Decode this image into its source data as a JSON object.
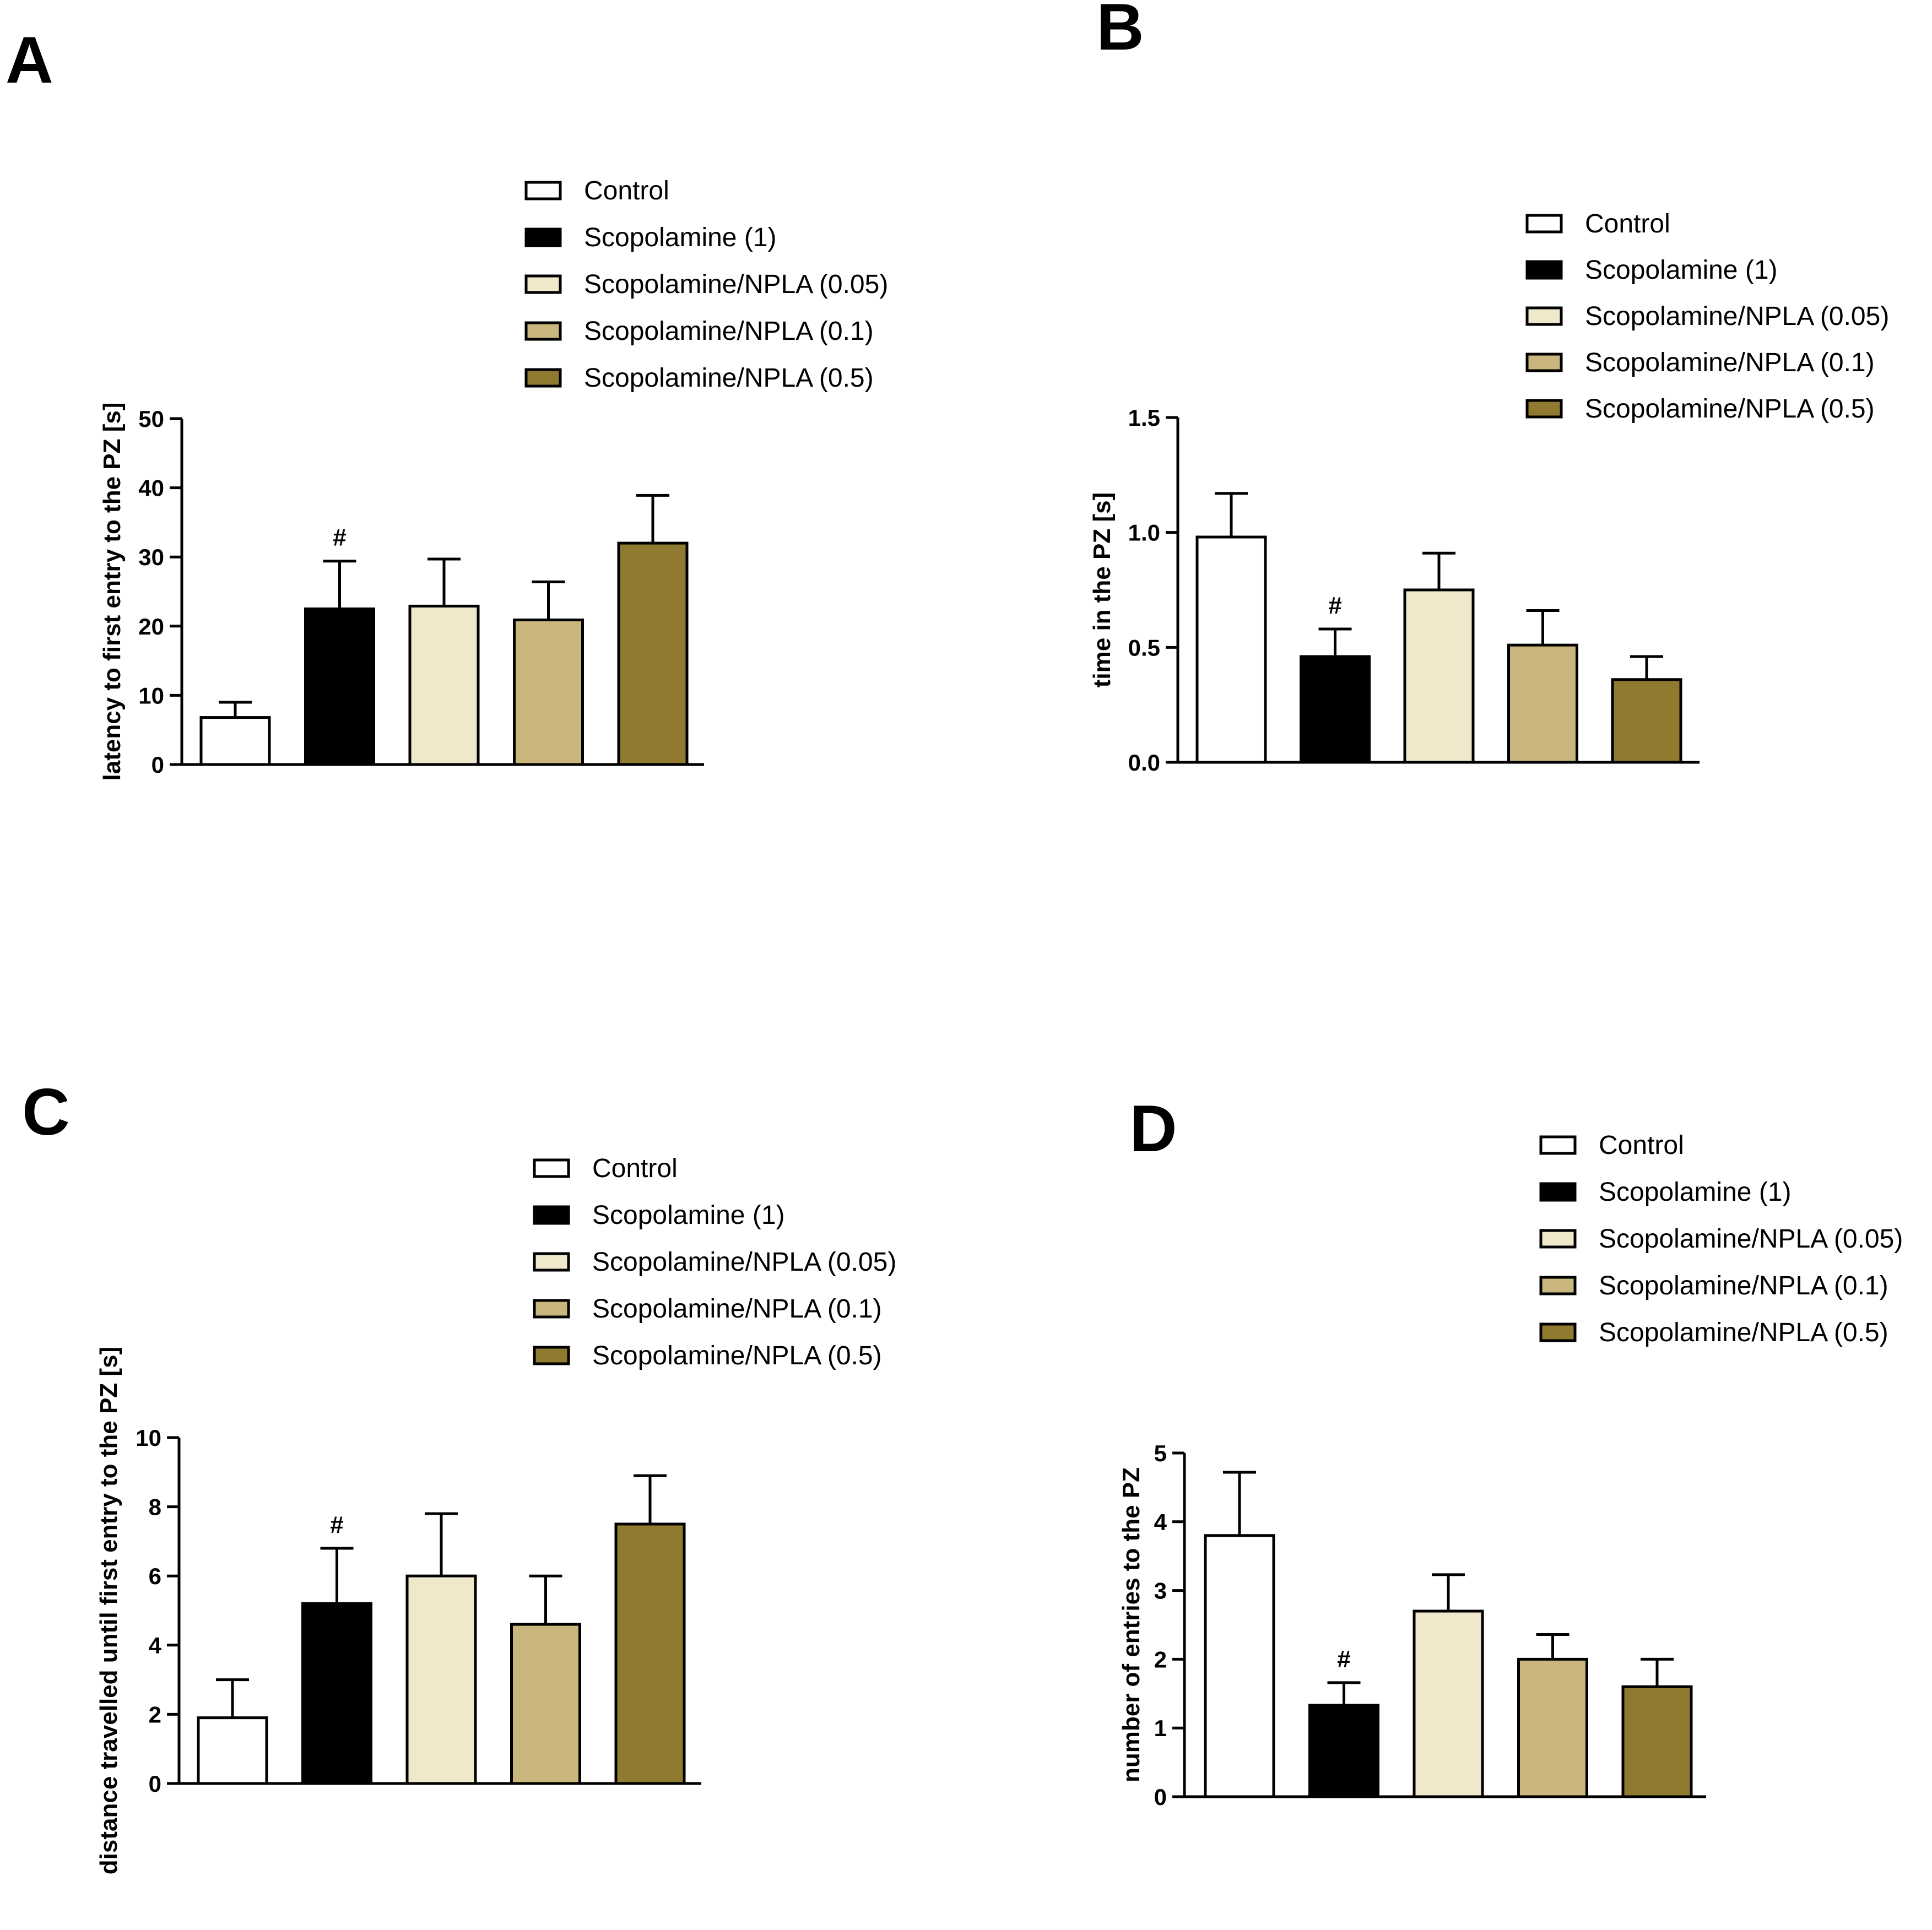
{
  "figure": {
    "colors": {
      "Control": "#ffffff",
      "Scopolamine (1)": "#000000",
      "Scopolamine/NPLA (0.05)": "#efe8cb",
      "Scopolamine/NPLA (0.1)": "#c8b67c",
      "Scopolamine/NPLA (0.5)": "#907a2f"
    }
  },
  "chart_data": [
    {
      "panel": "A",
      "type": "bar",
      "title": "",
      "xlabel": "",
      "ylabel": "latency to  first entry to the PZ [s]",
      "categories": [
        "Control",
        "Scopolamine (1)",
        "Scopolamine/NPLA (0.05)",
        "Scopolamine/NPLA (0.1)",
        "Scopolamine/NPLA (0.5)"
      ],
      "values": [
        6.8,
        22.5,
        22.9,
        20.9,
        32.0
      ],
      "errors": [
        2.2,
        6.9,
        6.8,
        5.5,
        6.9
      ],
      "significance": [
        "",
        "#",
        "",
        "",
        ""
      ],
      "ylim": [
        0,
        50
      ],
      "yticks": [
        0,
        10,
        20,
        30,
        40,
        50
      ],
      "legend": [
        "Control",
        "Scopolamine (1)",
        "Scopolamine/NPLA (0.05)",
        "Scopolamine/NPLA (0.1)",
        "Scopolamine/NPLA (0.5)"
      ]
    },
    {
      "panel": "B",
      "type": "bar",
      "title": "",
      "xlabel": "",
      "ylabel": "time in the PZ [s]",
      "categories": [
        "Control",
        "Scopolamine (1)",
        "Scopolamine/NPLA (0.05)",
        "Scopolamine/NPLA (0.1)",
        "Scopolamine/NPLA (0.5)"
      ],
      "values": [
        0.98,
        0.46,
        0.75,
        0.51,
        0.36
      ],
      "errors": [
        0.19,
        0.12,
        0.16,
        0.15,
        0.1
      ],
      "significance": [
        "",
        "#",
        "",
        "",
        ""
      ],
      "ylim": [
        0,
        1.5
      ],
      "yticks": [
        "0.0",
        "0.5",
        "1.0",
        "1.5"
      ],
      "legend": [
        "Control",
        "Scopolamine (1)",
        "Scopolamine/NPLA (0.05)",
        "Scopolamine/NPLA (0.1)",
        "Scopolamine/NPLA (0.5)"
      ]
    },
    {
      "panel": "C",
      "type": "bar",
      "title": "",
      "xlabel": "",
      "ylabel": "distance travelled until first entry to the PZ [s]",
      "categories": [
        "Control",
        "Scopolamine (1)",
        "Scopolamine/NPLA (0.05)",
        "Scopolamine/NPLA (0.1)",
        "Scopolamine/NPLA (0.5)"
      ],
      "values": [
        1.9,
        5.2,
        6.0,
        4.6,
        7.5
      ],
      "errors": [
        1.1,
        1.6,
        1.8,
        1.4,
        1.4
      ],
      "significance": [
        "",
        "#",
        "",
        "",
        ""
      ],
      "ylim": [
        0,
        10
      ],
      "yticks": [
        0,
        2,
        4,
        6,
        8,
        10
      ],
      "legend": [
        "Control",
        "Scopolamine (1)",
        "Scopolamine/NPLA (0.05)",
        "Scopolamine/NPLA (0.1)",
        "Scopolamine/NPLA (0.5)"
      ]
    },
    {
      "panel": "D",
      "type": "bar",
      "title": "",
      "xlabel": "",
      "ylabel": "number of entries to the PZ",
      "categories": [
        "Control",
        "Scopolamine (1)",
        "Scopolamine/NPLA (0.05)",
        "Scopolamine/NPLA (0.1)",
        "Scopolamine/NPLA (0.5)"
      ],
      "values": [
        3.8,
        1.33,
        2.7,
        2.0,
        1.6
      ],
      "errors": [
        0.92,
        0.33,
        0.53,
        0.36,
        0.4
      ],
      "significance": [
        "",
        "#",
        "",
        "",
        ""
      ],
      "ylim": [
        0,
        5
      ],
      "yticks": [
        0,
        1,
        2,
        3,
        4,
        5
      ],
      "legend": [
        "Control",
        "Scopolamine (1)",
        "Scopolamine/NPLA (0.05)",
        "Scopolamine/NPLA (0.1)",
        "Scopolamine/NPLA (0.5)"
      ]
    }
  ]
}
